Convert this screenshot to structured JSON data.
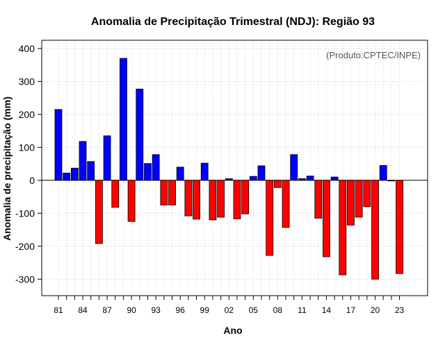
{
  "chart_data": {
    "type": "bar",
    "title": "Anomalia de Precipitação Trimestral (NDJ): Região 93",
    "xlabel": "Ano",
    "ylabel": "Anomalia de precipitação (mm)",
    "credit": "(Produto:CPTEC/INPE)",
    "ylim": [
      -350,
      425
    ],
    "yticks": [
      -300,
      -200,
      -100,
      0,
      100,
      200,
      300,
      400
    ],
    "xtick_labels": [
      "81",
      "84",
      "87",
      "90",
      "93",
      "96",
      "99",
      "02",
      "05",
      "08",
      "11",
      "14",
      "17",
      "20",
      "23"
    ],
    "categories": [
      "81",
      "82",
      "83",
      "84",
      "85",
      "86",
      "87",
      "88",
      "89",
      "90",
      "91",
      "92",
      "93",
      "94",
      "95",
      "96",
      "97",
      "98",
      "99",
      "00",
      "01",
      "02",
      "03",
      "04",
      "05",
      "06",
      "07",
      "08",
      "09",
      "10",
      "11",
      "12",
      "13",
      "14",
      "15",
      "16",
      "17",
      "18",
      "19",
      "20",
      "21",
      "22",
      "23"
    ],
    "values": [
      215,
      22,
      37,
      118,
      57,
      -192,
      135,
      -82,
      370,
      -125,
      277,
      51,
      78,
      -75,
      -75,
      40,
      -108,
      -118,
      52,
      -120,
      -112,
      5,
      -117,
      -102,
      12,
      44,
      -228,
      -22,
      -143,
      78,
      5,
      13,
      -115,
      -232,
      10,
      -287,
      -136,
      -112,
      -80,
      -300,
      45,
      -2,
      -283
    ],
    "positive_color": "#0000ff",
    "negative_color": "#ff0000",
    "grid": true
  }
}
